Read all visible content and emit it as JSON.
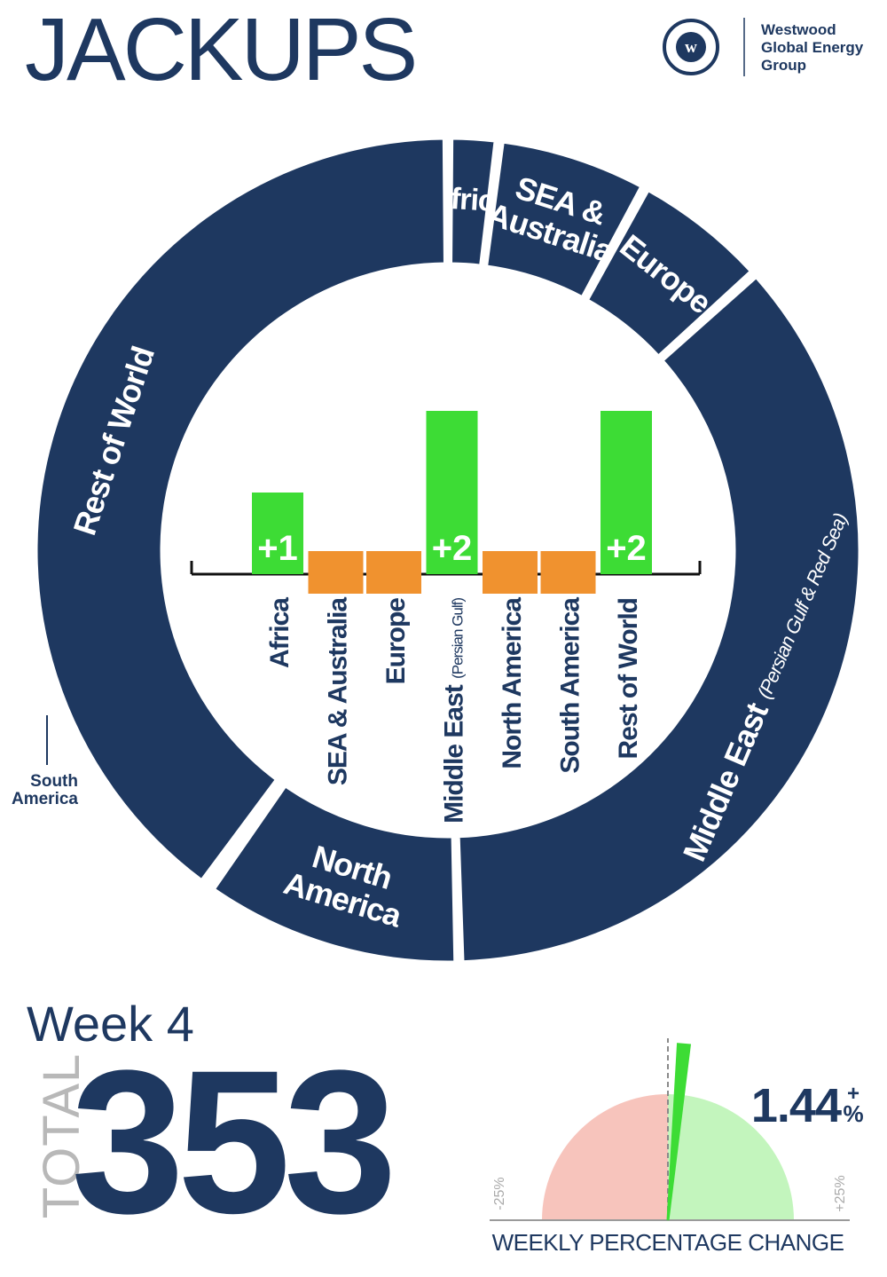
{
  "header": {
    "title": "JACKUPS",
    "logo": {
      "lines": [
        "Westwood",
        "Global Energy",
        "Group"
      ],
      "icon": "w-circle-icon"
    }
  },
  "colors": {
    "navy": "#1e3860",
    "increase": "#3ddc35",
    "no_change": "#f0922f",
    "gauge_negative": "#f7c4bc",
    "gauge_positive": "#c3f5bd"
  },
  "chart_data": [
    {
      "type": "pie",
      "variant": "donut",
      "slices": [
        {
          "label": "Africa",
          "value": 7
        },
        {
          "label": "SEA & Australia",
          "value": 21
        },
        {
          "label": "Europe",
          "value": 19
        },
        {
          "label": "Middle East",
          "sublabel": "(Persian Gulf & Red Sea)",
          "value": 128
        },
        {
          "label": "North America",
          "value": 36
        },
        {
          "label": "South America",
          "value": 1
        },
        {
          "label": "Rest of World",
          "value": 141
        }
      ]
    },
    {
      "type": "bar",
      "title": "",
      "categories": [
        "Africa",
        "SEA & Australia",
        "Europe",
        "Middle East",
        "North America",
        "South America",
        "Rest of World"
      ],
      "category_notes": [
        "",
        "",
        "",
        "(Persian Gulf)",
        "",
        "",
        ""
      ],
      "values": [
        1,
        0,
        0,
        2,
        0,
        0,
        2
      ],
      "data_labels": [
        "+1",
        "",
        "",
        "+2",
        "",
        "",
        "+2"
      ],
      "xlabel": "",
      "ylabel": ""
    },
    {
      "type": "gauge",
      "value": 1.44,
      "unit": "%",
      "range": [
        -25,
        25
      ],
      "min_label": "-25%",
      "max_label": "+25%",
      "value_label": "1.44",
      "sign_label": "+",
      "unit_label": "%",
      "caption": "WEEKLY PERCENTAGE CHANGE"
    }
  ],
  "annotations": {
    "south_america_callout": [
      "South",
      "America"
    ]
  },
  "summary": {
    "week_label": "Week 4",
    "total_label": "TOTAL",
    "total_value": "353"
  }
}
